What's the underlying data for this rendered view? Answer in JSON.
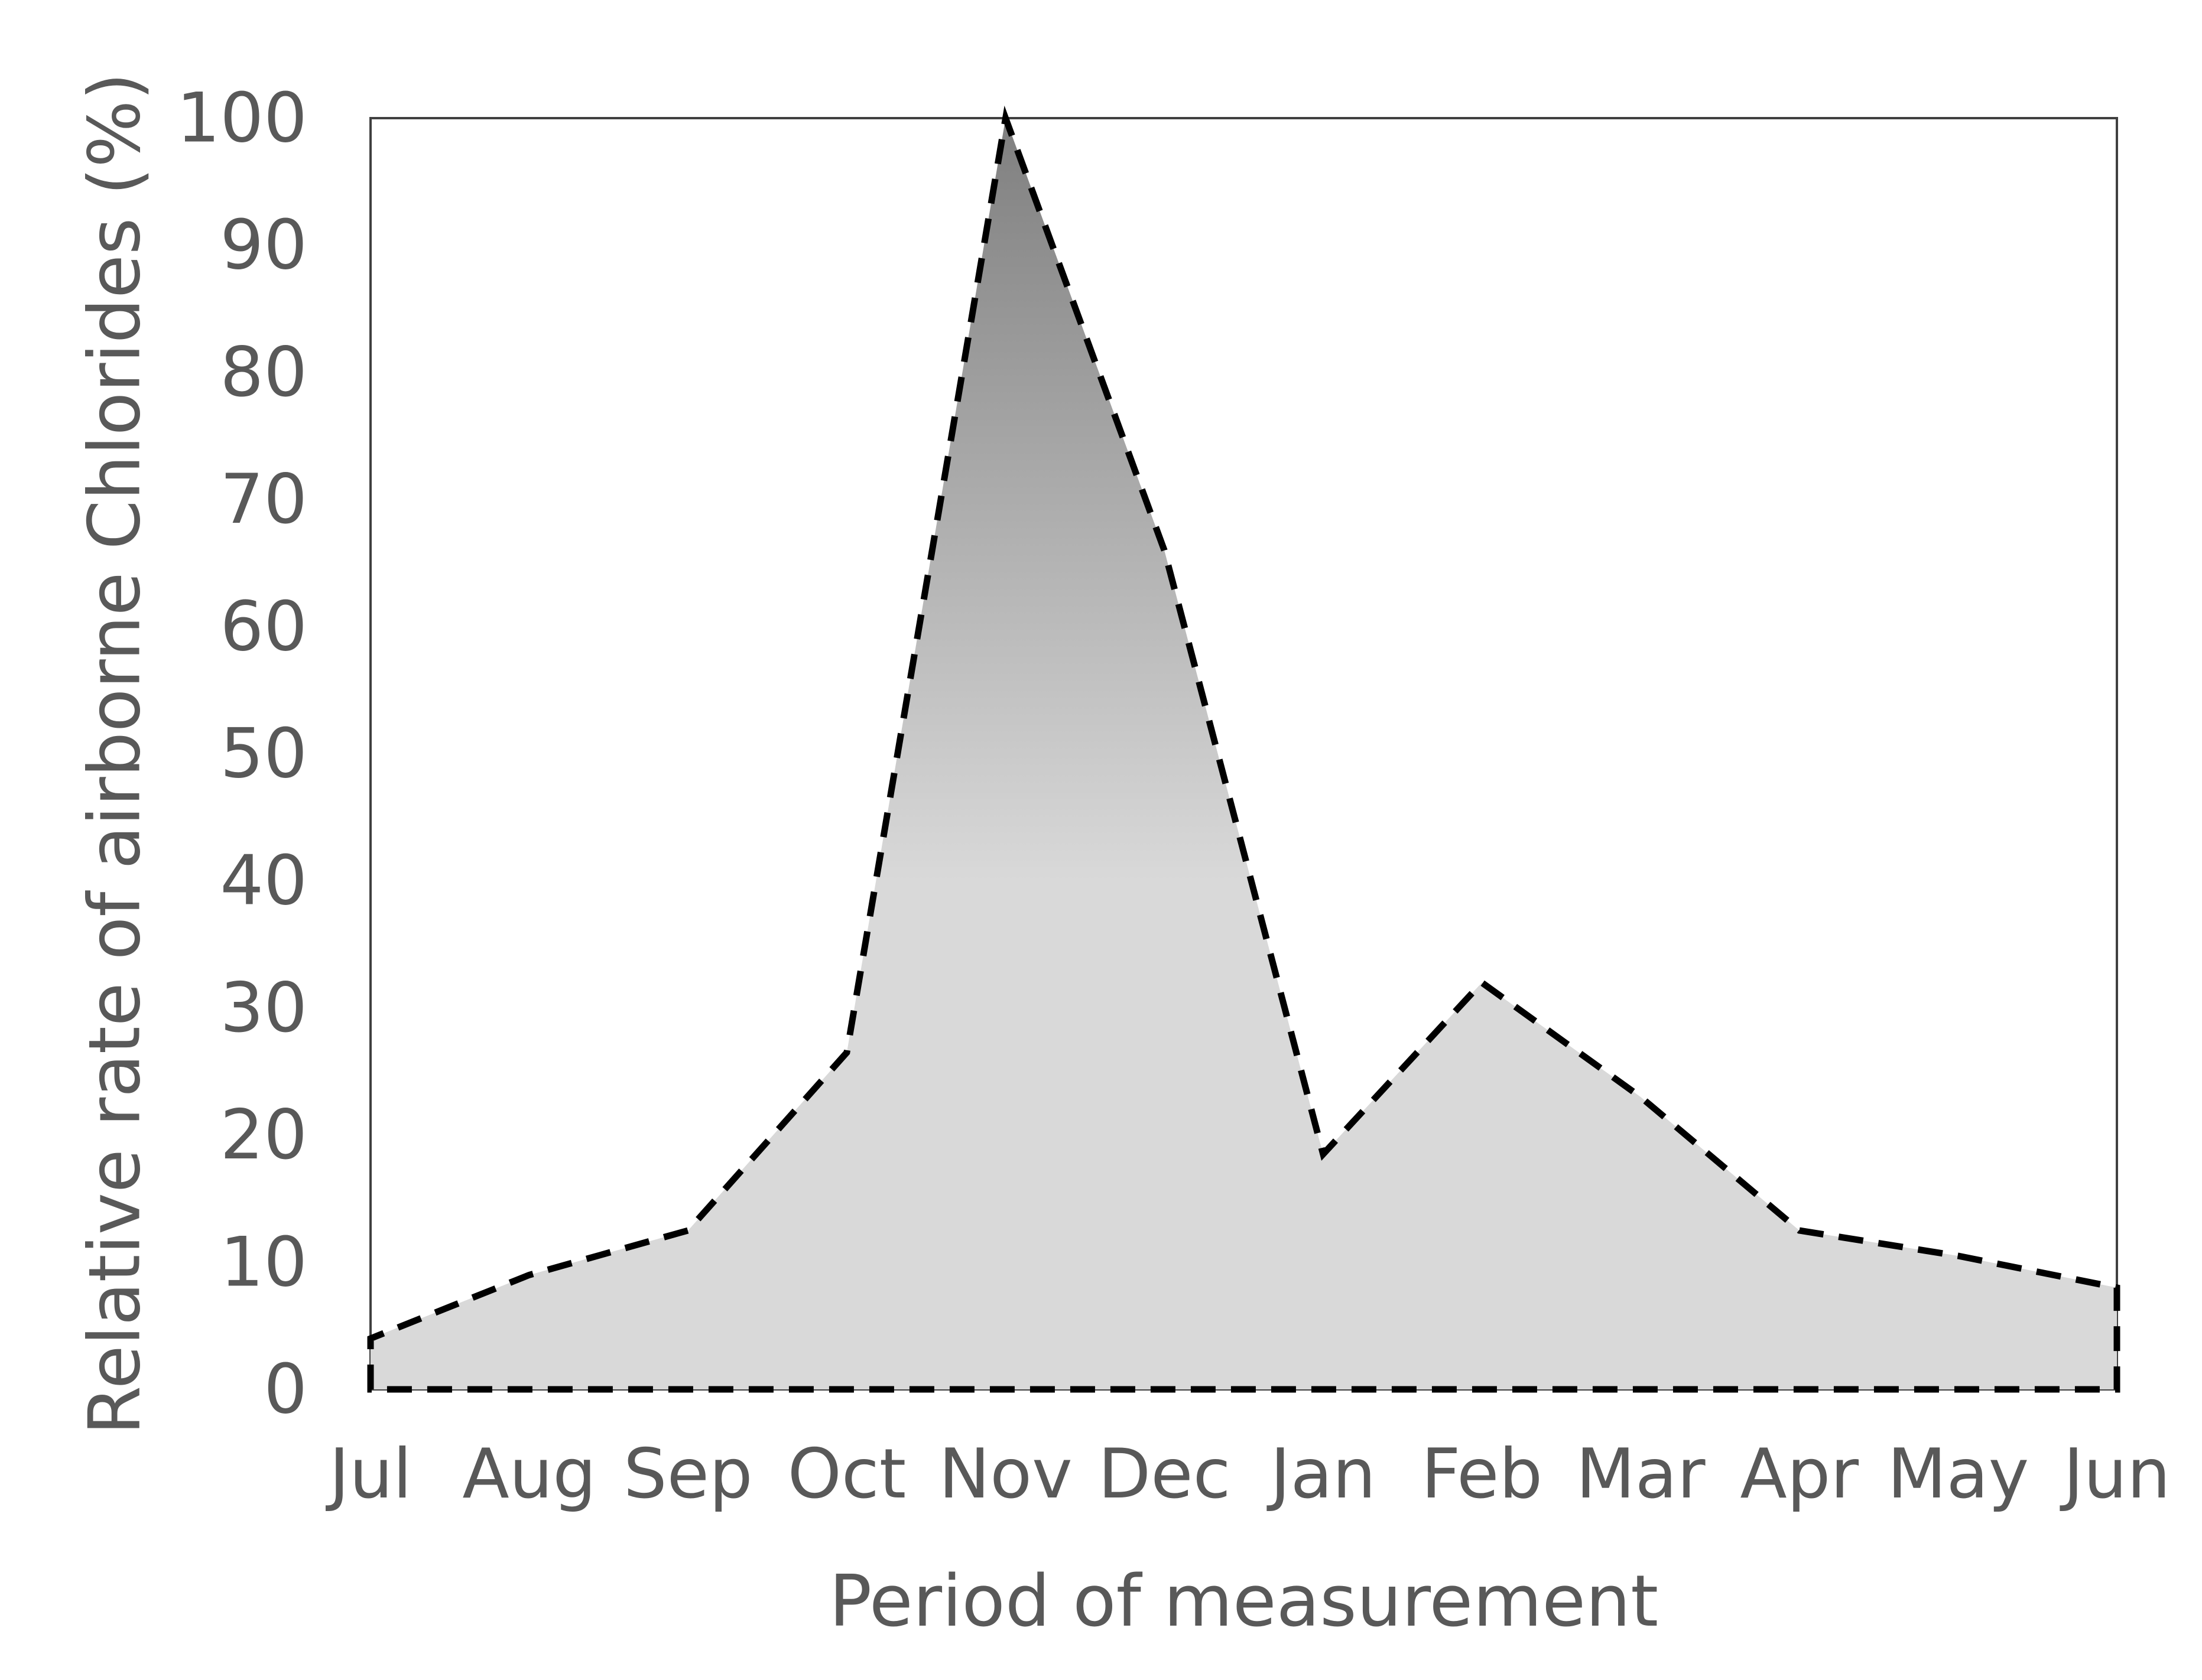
{
  "chart_data": {
    "type": "area",
    "categories": [
      "Jul",
      "Aug",
      "Sep",
      "Oct",
      "Nov",
      "Dec",
      "Jan",
      "Feb",
      "Mar",
      "Apr",
      "May",
      "Jun"
    ],
    "values": [
      4,
      9,
      12.5,
      26.5,
      100,
      66,
      18.5,
      32,
      23,
      12.5,
      10.5,
      8
    ],
    "title": "",
    "xlabel": "Period of measurement",
    "ylabel": "Relative rate of airborne Chlorides (%)",
    "ylim": [
      0,
      100
    ],
    "yticks": [
      0,
      10,
      20,
      30,
      40,
      50,
      60,
      70,
      80,
      90,
      100
    ],
    "grid": false,
    "legend": "none",
    "line_style": "dashed",
    "line_color": "#000000",
    "fill_gradient": [
      "#7f7f7f",
      "#d9d9d9"
    ],
    "text_color": "#595959",
    "frame_color": "#404040"
  }
}
